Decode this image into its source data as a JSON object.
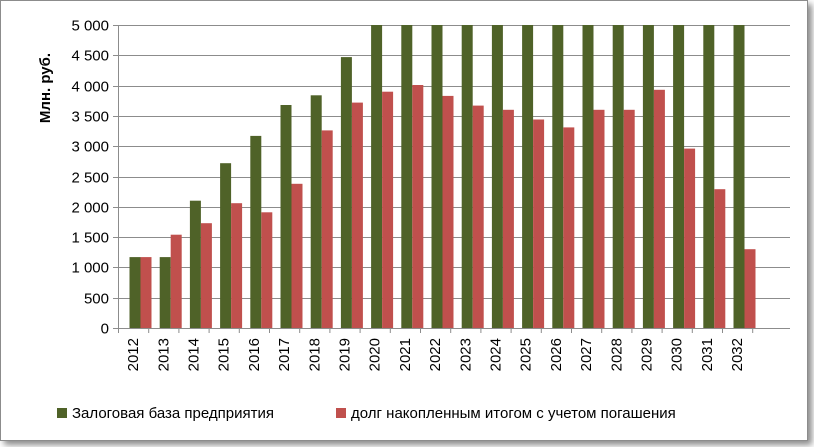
{
  "chart_data": {
    "type": "bar",
    "ylabel": "Млн. руб.",
    "xlabel": "",
    "ylim": [
      0,
      5000
    ],
    "yticks": [
      "0",
      "500",
      "1 000",
      "1 500",
      "2 000",
      "2 500",
      "3 000",
      "3 500",
      "4 000",
      "4 500",
      "5 000"
    ],
    "grid": true,
    "legend_position": "bottom",
    "categories": [
      "2012",
      "2013",
      "2014",
      "2015",
      "2016",
      "2017",
      "2018",
      "2019",
      "2020",
      "2021",
      "2022",
      "2023",
      "2024",
      "2025",
      "2026",
      "2027",
      "2028",
      "2029",
      "2030",
      "2031",
      "2032"
    ],
    "series": [
      {
        "name": "Залоговая база предприятия",
        "color": "#4f6228",
        "values": [
          1170,
          1170,
          2100,
          2720,
          3170,
          3680,
          3840,
          4470,
          5000,
          5000,
          5000,
          5000,
          5000,
          5000,
          5000,
          5000,
          5000,
          5000,
          5000,
          5000,
          5000
        ]
      },
      {
        "name": "долг накопленным итогом с учетом погашения",
        "color": "#c0504d",
        "values": [
          1170,
          1540,
          1730,
          2060,
          1910,
          2380,
          3260,
          3720,
          3900,
          4010,
          3830,
          3670,
          3600,
          3440,
          3310,
          3600,
          3600,
          3930,
          2960,
          2290,
          1300
        ]
      }
    ]
  }
}
